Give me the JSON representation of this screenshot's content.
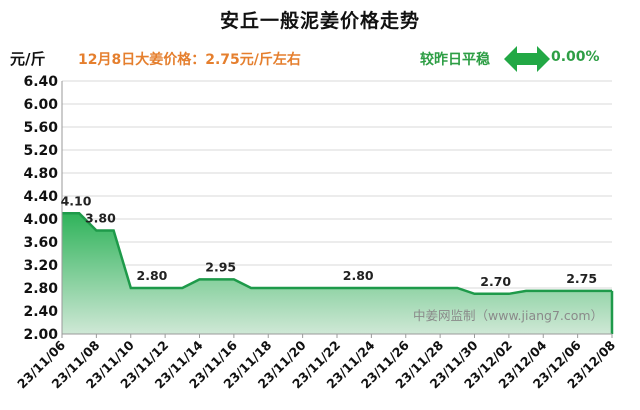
{
  "header": {
    "title": "安丘一般泥姜价格走势",
    "unit": "元/斤",
    "price_note": "12月8日大姜价格：2.75元/斤左右",
    "compare_label": "较昨日平稳",
    "compare_icon": "double-arrow-icon",
    "compare_value": "0.00%"
  },
  "watermark": "中姜网监制（www.jiang7.com）",
  "colors": {
    "line": "#1e9a4a",
    "fill_top": "#2fb35a",
    "fill_bottom": "#cfe8d6",
    "accent_orange": "#e57f2e",
    "accent_green": "#2e9e45"
  },
  "chart_data": {
    "type": "area",
    "title": "安丘一般泥姜价格走势",
    "ylabel": "元/斤",
    "xlabel": "",
    "ylim": [
      2.0,
      6.4
    ],
    "ytick_step": 0.4,
    "grid": true,
    "x_tick_labels": [
      "23/11/06",
      "23/11/08",
      "23/11/10",
      "23/11/12",
      "23/11/14",
      "23/11/16",
      "23/11/18",
      "23/11/20",
      "23/11/22",
      "23/11/24",
      "23/11/26",
      "23/11/28",
      "23/11/30",
      "23/12/02",
      "23/12/04",
      "23/12/06",
      "23/12/08"
    ],
    "x": [
      "23/11/06",
      "23/11/07",
      "23/11/08",
      "23/11/09",
      "23/11/10",
      "23/11/11",
      "23/11/12",
      "23/11/13",
      "23/11/14",
      "23/11/15",
      "23/11/16",
      "23/11/17",
      "23/11/18",
      "23/11/19",
      "23/11/20",
      "23/11/21",
      "23/11/22",
      "23/11/23",
      "23/11/24",
      "23/11/25",
      "23/11/26",
      "23/11/27",
      "23/11/28",
      "23/11/29",
      "23/11/30",
      "23/12/01",
      "23/12/02",
      "23/12/03",
      "23/12/04",
      "23/12/05",
      "23/12/06",
      "23/12/07",
      "23/12/08"
    ],
    "series": [
      {
        "values": [
          4.1,
          4.1,
          3.8,
          3.8,
          2.8,
          2.8,
          2.8,
          2.8,
          2.95,
          2.95,
          2.95,
          2.8,
          2.8,
          2.8,
          2.8,
          2.8,
          2.8,
          2.8,
          2.8,
          2.8,
          2.8,
          2.8,
          2.8,
          2.8,
          2.7,
          2.7,
          2.7,
          2.75,
          2.75,
          2.75,
          2.75,
          2.75,
          2.75
        ]
      }
    ],
    "data_labels": [
      {
        "x": "23/11/06",
        "value": "4.10"
      },
      {
        "x": "23/11/08",
        "value": "3.80"
      },
      {
        "x": "23/11/11",
        "value": "2.80"
      },
      {
        "x": "23/11/15",
        "value": "2.95"
      },
      {
        "x": "23/11/23",
        "value": "2.80"
      },
      {
        "x": "23/12/01",
        "value": "2.70"
      },
      {
        "x": "23/12/06",
        "value": "2.75"
      }
    ]
  }
}
